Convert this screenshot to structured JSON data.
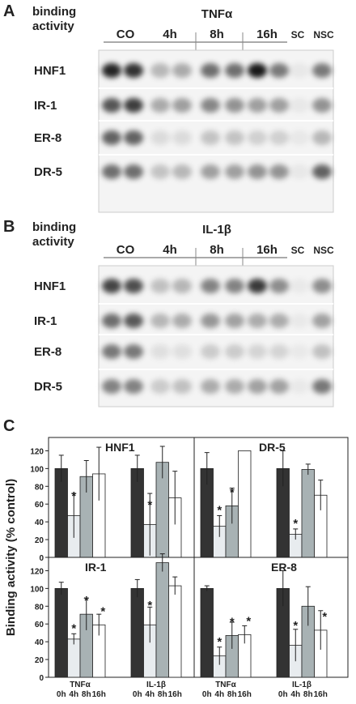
{
  "blots": [
    {
      "label": "A",
      "header": "binding activity",
      "treatment": "TNFα",
      "lanes": [
        "CO",
        "4h",
        "8h",
        "16h",
        "SC",
        "NSC"
      ],
      "rows": [
        "HNF1",
        "IR-1",
        "ER-8",
        "DR-5"
      ]
    },
    {
      "label": "B",
      "header": "binding activity",
      "treatment": "IL-1β",
      "lanes": [
        "CO",
        "4h",
        "8h",
        "16h",
        "SC",
        "NSC"
      ],
      "rows": [
        "HNF1",
        "IR-1",
        "ER-8",
        "DR-5"
      ]
    }
  ],
  "panel_c": {
    "label": "C",
    "ylabel": "Binding activity (% control)"
  },
  "chart_data": [
    {
      "type": "bar",
      "title": "HNF1",
      "ylim": [
        0,
        135
      ],
      "yticks": [
        0,
        20,
        40,
        60,
        80,
        100,
        120
      ],
      "series": [
        {
          "color": "#333333",
          "values": [
            100,
            100
          ],
          "errors": [
            15,
            15
          ],
          "stars": [
            null,
            null
          ]
        },
        {
          "color": "#e8ecef",
          "values": [
            47,
            37
          ],
          "errors": [
            25,
            35
          ],
          "stars": [
            "*",
            "*"
          ]
        },
        {
          "color": "#a8b2b4",
          "values": [
            91,
            107
          ],
          "errors": [
            18,
            18
          ],
          "stars": [
            null,
            null
          ]
        },
        {
          "color": "#ffffff",
          "values": [
            94,
            67
          ],
          "errors": [
            30,
            30
          ],
          "stars": [
            null,
            null
          ]
        }
      ]
    },
    {
      "type": "bar",
      "title": "DR-5",
      "ylim": [
        0,
        135
      ],
      "series": [
        {
          "color": "#333333",
          "values": [
            100,
            100
          ],
          "errors": [
            18,
            20
          ],
          "stars": [
            null,
            null
          ]
        },
        {
          "color": "#e8ecef",
          "values": [
            35,
            26
          ],
          "errors": [
            12,
            6
          ],
          "stars": [
            "*",
            "*"
          ]
        },
        {
          "color": "#a8b2b4",
          "values": [
            58,
            99
          ],
          "errors": [
            20,
            6
          ],
          "stars": [
            "*",
            null
          ]
        },
        {
          "color": "#ffffff",
          "values": [
            120,
            70
          ],
          "errors": [
            null,
            17
          ],
          "stars": [
            null,
            null
          ]
        }
      ]
    },
    {
      "type": "bar",
      "title": "IR-1",
      "ylim": [
        0,
        135
      ],
      "yticks": [
        0,
        20,
        40,
        60,
        80,
        100,
        120
      ],
      "groups": [
        "TNFα",
        "IL-1β"
      ],
      "series": [
        {
          "name": "0h",
          "color": "#333333",
          "values": [
            100,
            100
          ],
          "errors": [
            7,
            10
          ],
          "stars": [
            null,
            null
          ]
        },
        {
          "name": "4h",
          "color": "#e8ecef",
          "values": [
            43,
            59
          ],
          "errors": [
            6,
            20
          ],
          "stars": [
            "*",
            "*"
          ]
        },
        {
          "name": "8h",
          "color": "#a8b2b4",
          "values": [
            71,
            129
          ],
          "errors": [
            18,
            10
          ],
          "stars": [
            "*",
            null
          ]
        },
        {
          "name": "16h",
          "color": "#ffffff",
          "values": [
            59,
            103
          ],
          "errors": [
            12,
            10
          ],
          "stars": [
            "*",
            null
          ]
        }
      ]
    },
    {
      "type": "bar",
      "title": "ER-8",
      "ylim": [
        0,
        135
      ],
      "groups": [
        "TNFα",
        "IL-1β"
      ],
      "series": [
        {
          "name": "0h",
          "color": "#333333",
          "values": [
            100,
            100
          ],
          "errors": [
            3,
            20
          ],
          "stars": [
            null,
            null
          ]
        },
        {
          "name": "4h",
          "color": "#e8ecef",
          "values": [
            24,
            36
          ],
          "errors": [
            10,
            18
          ],
          "stars": [
            "*",
            "*"
          ]
        },
        {
          "name": "8h",
          "color": "#a8b2b4",
          "values": [
            47,
            80
          ],
          "errors": [
            15,
            22
          ],
          "stars": [
            "*",
            null
          ]
        },
        {
          "name": "16h",
          "color": "#ffffff",
          "values": [
            48,
            53
          ],
          "errors": [
            10,
            22
          ],
          "stars": [
            "*",
            "*"
          ]
        }
      ]
    }
  ]
}
